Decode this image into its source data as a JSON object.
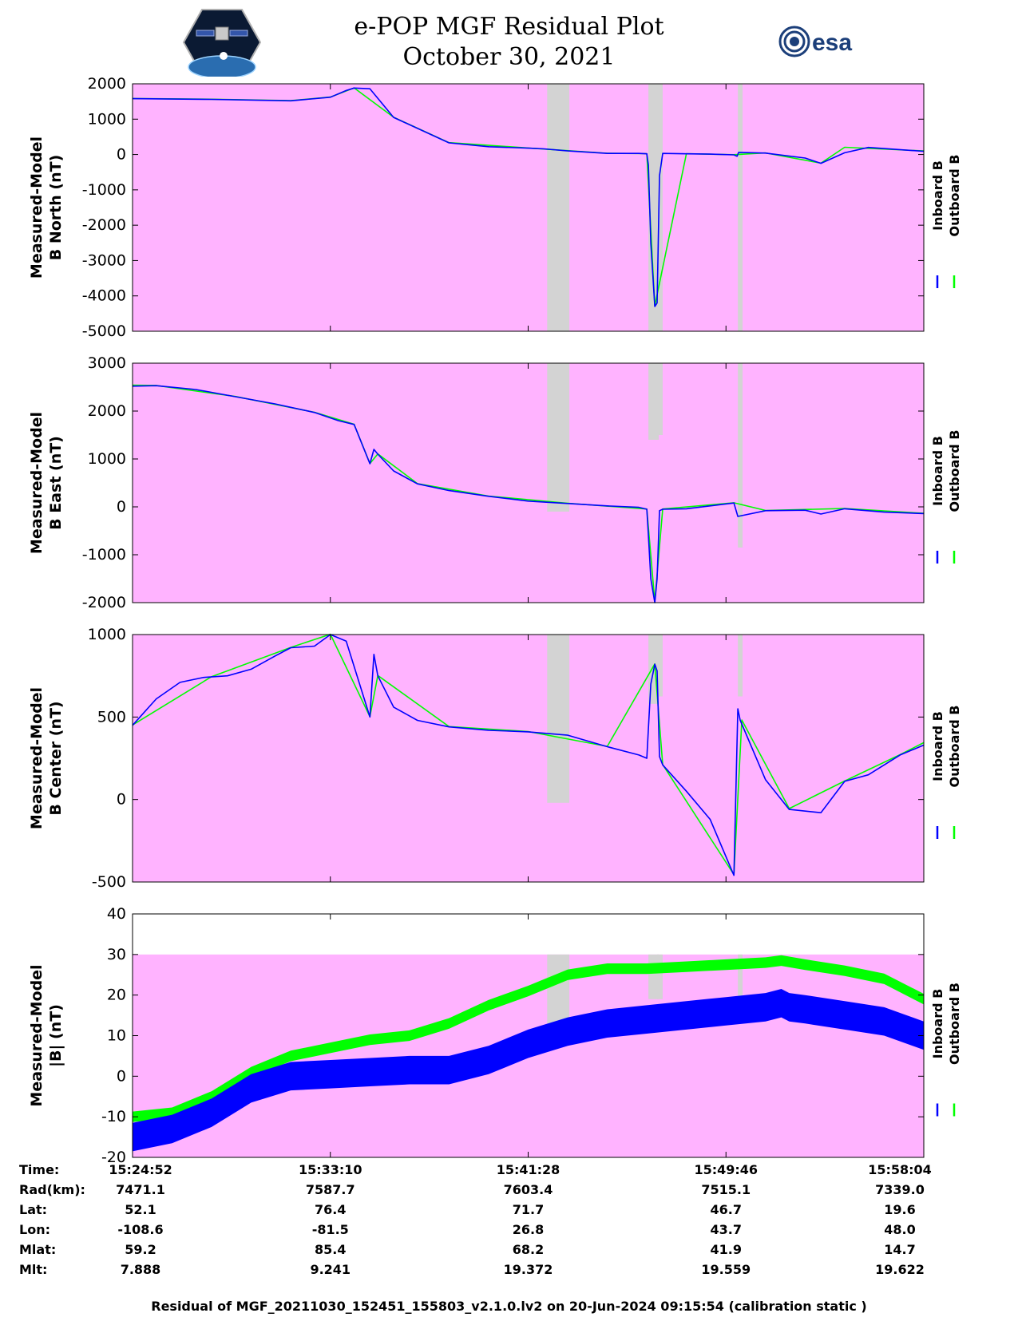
{
  "header": {
    "title": "e-POP MGF Residual Plot",
    "date": "October 30, 2021",
    "left_logo": "cassiope-satellite-logo",
    "right_logo": "esa-logo",
    "right_logo_text": "esa"
  },
  "colors": {
    "background": "#ffb3ff",
    "gap": "#d3d3d3",
    "inboard": "#0000ff",
    "outboard": "#00ff00"
  },
  "chart_data": [
    {
      "type": "line",
      "ylabel": [
        "Measured-Model",
        "B North (nT)"
      ],
      "ylim": [
        -5000,
        2000
      ],
      "yticks": [
        "2000",
        "1000",
        "0",
        "-1000",
        "-2000",
        "-3000",
        "-4000",
        "-5000"
      ],
      "ytick_values": [
        2000,
        1000,
        0,
        -1000,
        -2000,
        -3000,
        -4000,
        -5000
      ],
      "legend": [
        "Inboard B",
        "Outboard B"
      ],
      "series": [
        {
          "name": "Inboard B",
          "x": [
            0,
            0.1,
            0.2,
            0.22,
            0.25,
            0.27,
            0.28,
            0.3,
            0.33,
            0.4,
            0.45,
            0.5,
            0.52,
            0.55,
            0.6,
            0.64,
            0.65,
            0.652,
            0.655,
            0.66,
            0.663,
            0.666,
            0.67,
            0.7,
            0.73,
            0.76,
            0.764,
            0.766,
            0.8,
            0.85,
            0.87,
            0.9,
            0.93,
            1.0
          ],
          "values": [
            1580,
            1560,
            1520,
            1560,
            1620,
            1810,
            1880,
            1860,
            1050,
            330,
            220,
            180,
            160,
            100,
            30,
            30,
            20,
            -300,
            -2500,
            -4300,
            -4200,
            -600,
            30,
            20,
            10,
            -10,
            -50,
            60,
            40,
            -100,
            -250,
            50,
            200,
            90
          ]
        },
        {
          "name": "Outboard B",
          "x": [
            0,
            0.1,
            0.2,
            0.25,
            0.28,
            0.33,
            0.4,
            0.5,
            0.6,
            0.65,
            0.66,
            0.7,
            0.76,
            0.8,
            0.87,
            0.9,
            1.0
          ],
          "values": [
            1585,
            1565,
            1525,
            1625,
            1885,
            1055,
            335,
            185,
            35,
            25,
            -4280,
            25,
            -5,
            45,
            -245,
            205,
            100
          ]
        }
      ],
      "gaps": [
        [
          0.524,
          0.552,
          1.0
        ],
        [
          0.652,
          0.665,
          1.0
        ],
        [
          0.663,
          0.67,
          1.0
        ],
        [
          0.765,
          0.771,
          1.0
        ]
      ]
    },
    {
      "type": "line",
      "ylabel": [
        "Measured-Model",
        "B East (nT)"
      ],
      "ylim": [
        -2000,
        3000
      ],
      "yticks": [
        "3000",
        "2000",
        "1000",
        "0",
        "-1000",
        "-2000"
      ],
      "ytick_values": [
        3000,
        2000,
        1000,
        0,
        -1000,
        -2000
      ],
      "legend": [
        "Inboard B",
        "Outboard B"
      ],
      "series": [
        {
          "name": "Inboard B",
          "x": [
            0,
            0.03,
            0.08,
            0.13,
            0.18,
            0.23,
            0.26,
            0.28,
            0.3,
            0.305,
            0.31,
            0.33,
            0.36,
            0.4,
            0.45,
            0.5,
            0.55,
            0.6,
            0.64,
            0.65,
            0.652,
            0.655,
            0.66,
            0.663,
            0.666,
            0.67,
            0.7,
            0.73,
            0.76,
            0.765,
            0.8,
            0.85,
            0.87,
            0.9,
            0.95,
            1.0
          ],
          "values": [
            2520,
            2530,
            2450,
            2300,
            2150,
            1970,
            1800,
            1720,
            900,
            1200,
            1100,
            750,
            480,
            340,
            220,
            120,
            70,
            20,
            -10,
            -50,
            -600,
            -1500,
            -2000,
            -1500,
            -80,
            -50,
            -40,
            20,
            80,
            -200,
            -80,
            -70,
            -150,
            -40,
            -110,
            -140
          ]
        },
        {
          "name": "Outboard B",
          "x": [
            0,
            0.03,
            0.13,
            0.23,
            0.28,
            0.3,
            0.31,
            0.36,
            0.45,
            0.55,
            0.65,
            0.66,
            0.67,
            0.76,
            0.8,
            0.9,
            1.0
          ],
          "values": [
            2540,
            2535,
            2305,
            1975,
            1725,
            905,
            1105,
            485,
            225,
            75,
            -45,
            -1980,
            -45,
            85,
            -75,
            -35,
            -135
          ]
        }
      ],
      "gaps": [
        [
          0.524,
          0.552,
          0.62
        ],
        [
          0.652,
          0.665,
          0.32
        ],
        [
          0.663,
          0.67,
          0.3
        ],
        [
          0.765,
          0.771,
          0.77
        ]
      ]
    },
    {
      "type": "line",
      "ylabel": [
        "Measured-Model",
        "B Center (nT)"
      ],
      "ylim": [
        -500,
        1000
      ],
      "yticks": [
        "1000",
        "500",
        "0",
        "-500"
      ],
      "ytick_values": [
        1000,
        500,
        0,
        -500
      ],
      "legend": [
        "Inboard B",
        "Outboard B"
      ],
      "series": [
        {
          "name": "Inboard B",
          "x": [
            0,
            0.03,
            0.06,
            0.09,
            0.12,
            0.15,
            0.18,
            0.2,
            0.23,
            0.25,
            0.27,
            0.3,
            0.305,
            0.31,
            0.33,
            0.36,
            0.4,
            0.45,
            0.5,
            0.55,
            0.6,
            0.64,
            0.65,
            0.655,
            0.66,
            0.663,
            0.666,
            0.67,
            0.7,
            0.73,
            0.76,
            0.765,
            0.768,
            0.8,
            0.83,
            0.87,
            0.9,
            0.93,
            0.97,
            1.0
          ],
          "values": [
            450,
            610,
            710,
            740,
            750,
            790,
            870,
            920,
            930,
            1000,
            960,
            500,
            880,
            750,
            560,
            480,
            440,
            420,
            410,
            390,
            320,
            270,
            250,
            700,
            820,
            780,
            260,
            210,
            50,
            -120,
            -460,
            550,
            480,
            120,
            -60,
            -80,
            110,
            150,
            270,
            330
          ]
        },
        {
          "name": "Outboard B",
          "x": [
            0,
            0.1,
            0.2,
            0.25,
            0.3,
            0.31,
            0.4,
            0.5,
            0.6,
            0.66,
            0.67,
            0.76,
            0.77,
            0.83,
            0.9,
            0.97,
            1.0
          ],
          "values": [
            452,
            745,
            922,
            1002,
            502,
            752,
            442,
            412,
            322,
            822,
            212,
            -455,
            482,
            -55,
            112,
            272,
            345
          ]
        }
      ],
      "gaps": [
        [
          0.524,
          0.552,
          0.68
        ],
        [
          0.652,
          0.665,
          0.28
        ],
        [
          0.663,
          0.67,
          0.25
        ],
        [
          0.765,
          0.771,
          0.25
        ]
      ]
    },
    {
      "type": "line",
      "ylabel": [
        "Measured-Model",
        "|B| (nT)"
      ],
      "ylim": [
        -20,
        40
      ],
      "yticks": [
        "40",
        "30",
        "20",
        "10",
        "0",
        "-10",
        "-20"
      ],
      "ytick_values": [
        40,
        30,
        20,
        10,
        0,
        -10,
        -20
      ],
      "legend": [
        "Inboard B",
        "Outboard B"
      ],
      "background_top": 30,
      "series": [
        {
          "name": "Inboard B",
          "x": [
            0,
            0.05,
            0.1,
            0.15,
            0.2,
            0.25,
            0.3,
            0.35,
            0.4,
            0.45,
            0.5,
            0.55,
            0.6,
            0.65,
            0.7,
            0.75,
            0.8,
            0.82,
            0.83,
            0.85,
            0.9,
            0.95,
            1.0
          ],
          "values": [
            -15,
            -13,
            -9,
            -3,
            0,
            0.5,
            1,
            1.5,
            1.5,
            4,
            8,
            11,
            13,
            14,
            15,
            16,
            17,
            18,
            17,
            16.5,
            15,
            13.5,
            10
          ]
        },
        {
          "name": "Outboard B",
          "x": [
            0,
            0.05,
            0.1,
            0.15,
            0.2,
            0.25,
            0.3,
            0.35,
            0.4,
            0.45,
            0.5,
            0.55,
            0.6,
            0.65,
            0.7,
            0.75,
            0.8,
            0.82,
            0.85,
            0.9,
            0.95,
            1.0
          ],
          "values": [
            -10,
            -9,
            -5,
            1,
            5,
            7,
            9,
            10,
            13,
            17.5,
            21,
            25,
            26.5,
            26.5,
            27,
            27.5,
            28,
            28.5,
            27.5,
            26,
            24,
            19
          ]
        }
      ],
      "band_halfwidth": {
        "Inboard B": 3.5,
        "Outboard B": 1.3
      },
      "gaps": [
        [
          0.524,
          0.552,
          0.5
        ],
        [
          0.652,
          0.665,
          0.35
        ],
        [
          0.663,
          0.67,
          0.35
        ],
        [
          0.765,
          0.771,
          0.35
        ]
      ]
    }
  ],
  "info_table": {
    "labels": [
      "Time:",
      "Rad(km):",
      "Lat:",
      "Lon:",
      "Mlat:",
      "Mlt:"
    ],
    "columns": [
      [
        "15:24:52",
        "7471.1",
        "52.1",
        "-108.6",
        "59.2",
        "7.888"
      ],
      [
        "15:33:10",
        "7587.7",
        "76.4",
        "-81.5",
        "85.4",
        "9.241"
      ],
      [
        "15:41:28",
        "7603.4",
        "71.7",
        "26.8",
        "68.2",
        "19.372"
      ],
      [
        "15:49:46",
        "7515.1",
        "46.7",
        "43.7",
        "41.9",
        "19.559"
      ],
      [
        "15:58:04",
        "7339.0",
        "19.6",
        "48.0",
        "14.7",
        "19.622"
      ]
    ]
  },
  "footer": "Residual of MGF_20211030_152451_155803_v2.1.0.lv2 on 20-Jun-2024 09:15:54 (calibration static )"
}
